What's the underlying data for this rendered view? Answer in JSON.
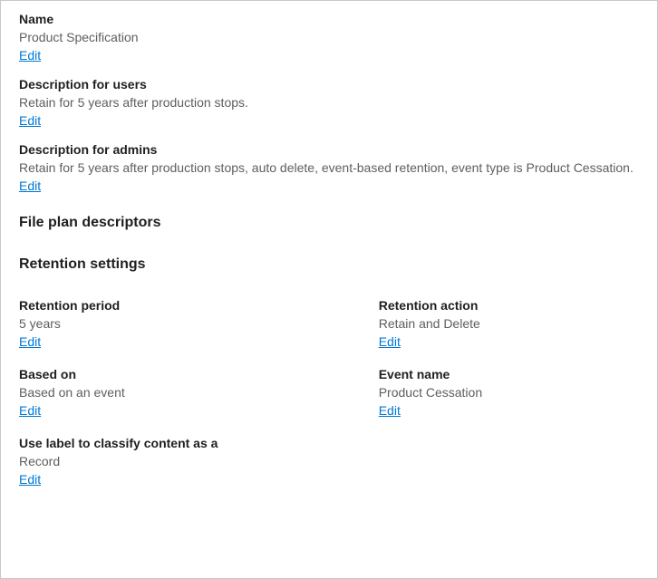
{
  "top": {
    "name": {
      "label": "Name",
      "value": "Product Specification",
      "edit": "Edit"
    },
    "desc_users": {
      "label": "Description for users",
      "value": "Retain for 5 years after production stops.",
      "edit": "Edit"
    },
    "desc_admins": {
      "label": "Description for admins",
      "value": "Retain for 5 years after production stops, auto delete, event-based retention, event type is Product Cessation.",
      "edit": "Edit"
    }
  },
  "sections": {
    "file_plan": "File plan descriptors",
    "retention": "Retention settings"
  },
  "retention": {
    "period": {
      "label": "Retention period",
      "value": "5 years",
      "edit": "Edit"
    },
    "action": {
      "label": "Retention action",
      "value": "Retain and Delete",
      "edit": "Edit"
    },
    "based_on": {
      "label": "Based on",
      "value": "Based on an event",
      "edit": "Edit"
    },
    "event_name": {
      "label": "Event name",
      "value": "Product Cessation",
      "edit": "Edit"
    },
    "classify": {
      "label": "Use label to classify content as a",
      "value": "Record",
      "edit": "Edit"
    }
  }
}
